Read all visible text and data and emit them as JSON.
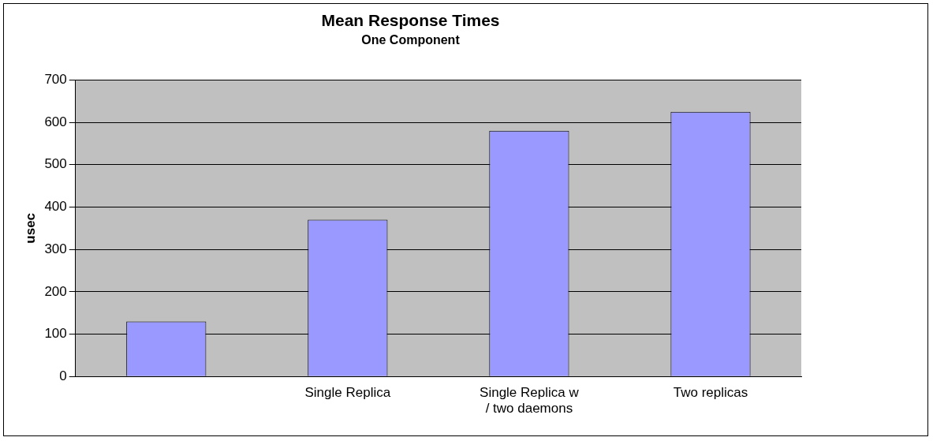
{
  "chart_data": {
    "type": "bar",
    "title": "Mean Response Times",
    "subtitle": "One Component",
    "ylabel": "usec",
    "categories": [
      null,
      "Single Replica",
      "Single Replica w / two daemons",
      "Two replicas"
    ],
    "values": [
      130,
      370,
      580,
      625
    ],
    "color": "#9999ff",
    "ylim": [
      0,
      700
    ],
    "yticks": [
      0,
      100,
      200,
      300,
      400,
      500,
      600,
      700
    ],
    "grid": "y",
    "legend": false
  }
}
